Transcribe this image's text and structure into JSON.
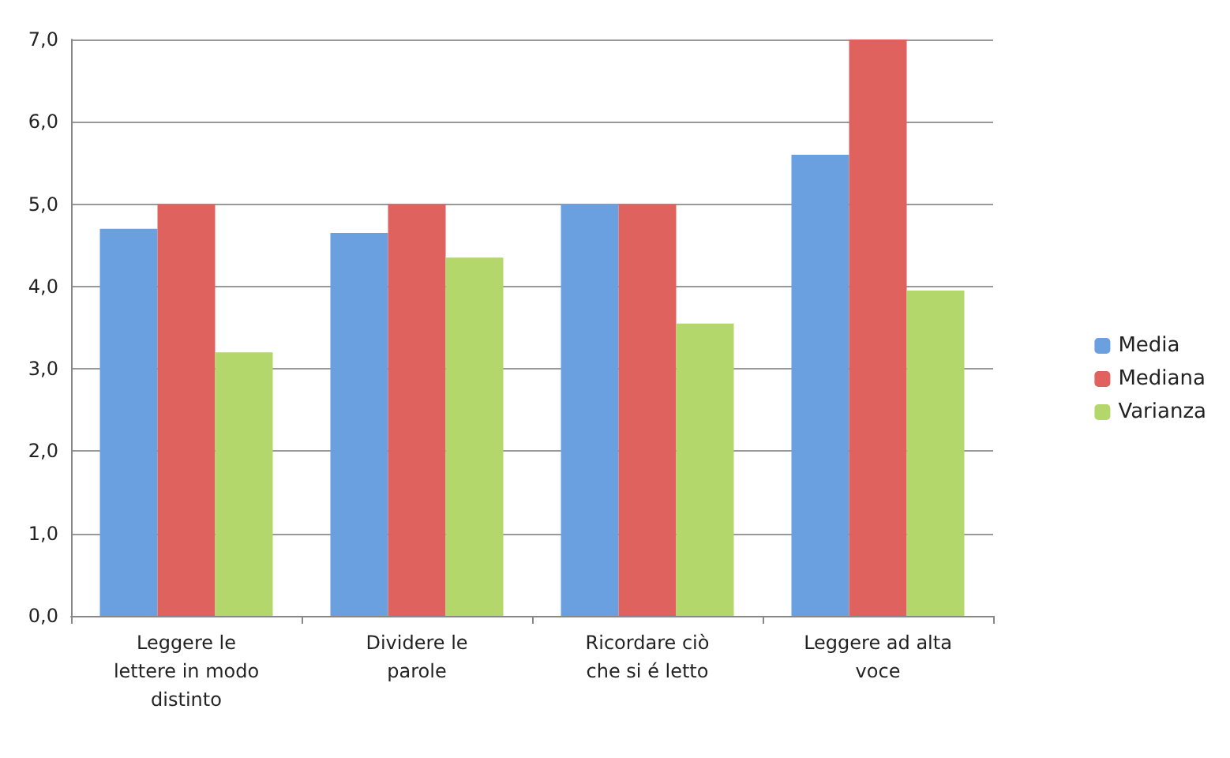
{
  "chart_data": {
    "type": "bar",
    "categories": [
      "Leggere le lettere in modo distinto",
      "Dividere le parole",
      "Ricordare ciò che si é letto",
      "Leggere ad alta voce"
    ],
    "series": [
      {
        "name": "Media",
        "color": "#6a9fe0",
        "values": [
          4.7,
          4.65,
          5.0,
          5.6
        ]
      },
      {
        "name": "Mediana",
        "color": "#e0625f",
        "values": [
          5.0,
          5.0,
          5.0,
          7.0
        ]
      },
      {
        "name": "Varianza",
        "color": "#b3d76a",
        "values": [
          3.2,
          4.35,
          3.55,
          3.95
        ]
      }
    ],
    "ylim": [
      0,
      7
    ],
    "yticks": [
      {
        "value": 0,
        "label": "0,0"
      },
      {
        "value": 1,
        "label": "1,0"
      },
      {
        "value": 2,
        "label": "2,0"
      },
      {
        "value": 3,
        "label": "3,0"
      },
      {
        "value": 4,
        "label": "4,0"
      },
      {
        "value": 5,
        "label": "5,0"
      },
      {
        "value": 6,
        "label": "6,0"
      },
      {
        "value": 7,
        "label": "7,0"
      }
    ],
    "grid": "y",
    "legend": "right"
  }
}
